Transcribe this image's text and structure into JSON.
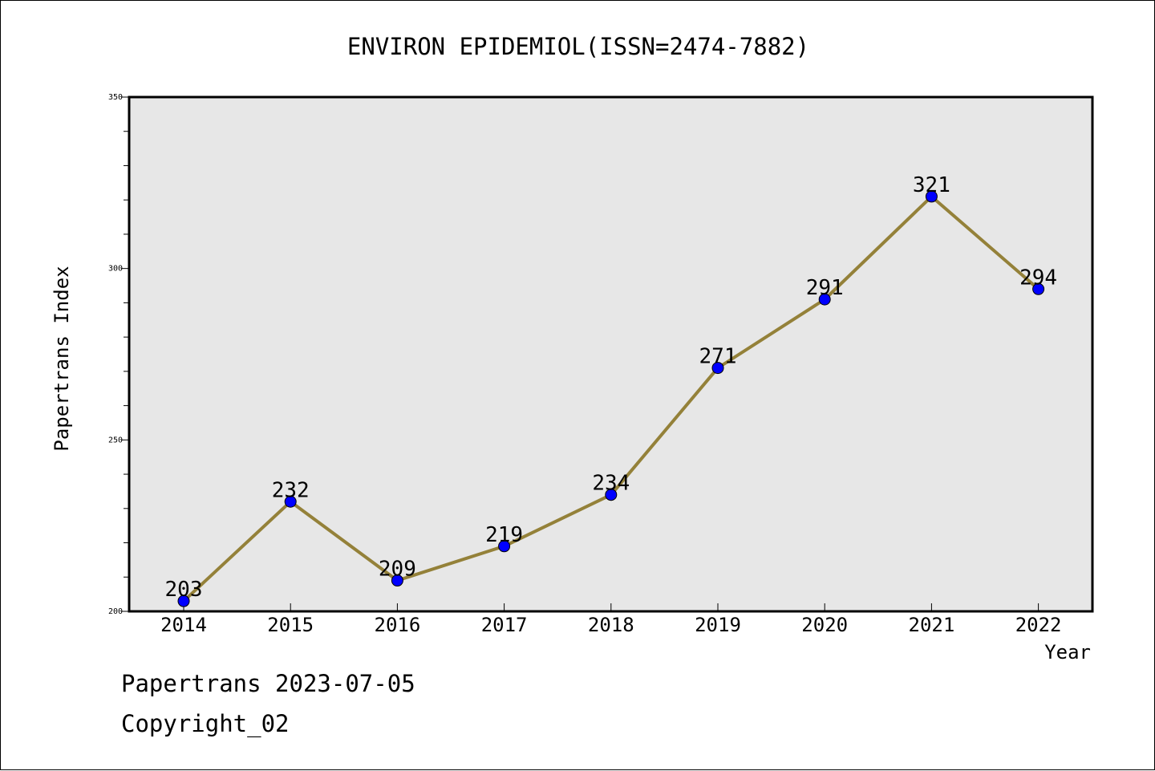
{
  "chart_data": {
    "type": "line",
    "title": "ENVIRON EPIDEMIOL(ISSN=2474-7882)",
    "xlabel": "Year",
    "ylabel": "Papertrans Index",
    "categories": [
      "2014",
      "2015",
      "2016",
      "2017",
      "2018",
      "2019",
      "2020",
      "2021",
      "2022"
    ],
    "values": [
      203,
      232,
      209,
      219,
      234,
      271,
      291,
      321,
      294
    ],
    "data_labels": [
      "203",
      "232",
      "209",
      "219",
      "234",
      "271",
      "291",
      "321",
      "294"
    ],
    "ylim": [
      200,
      350
    ],
    "yticks": [
      "200",
      "250",
      "300",
      "350"
    ],
    "grid": false,
    "colors": {
      "line": "#948139",
      "marker": "#0000ff",
      "plot_background": "#e7e7e7"
    }
  },
  "footer": {
    "source": "Papertrans 2023-07-05",
    "copyright": "Copyright_02"
  }
}
